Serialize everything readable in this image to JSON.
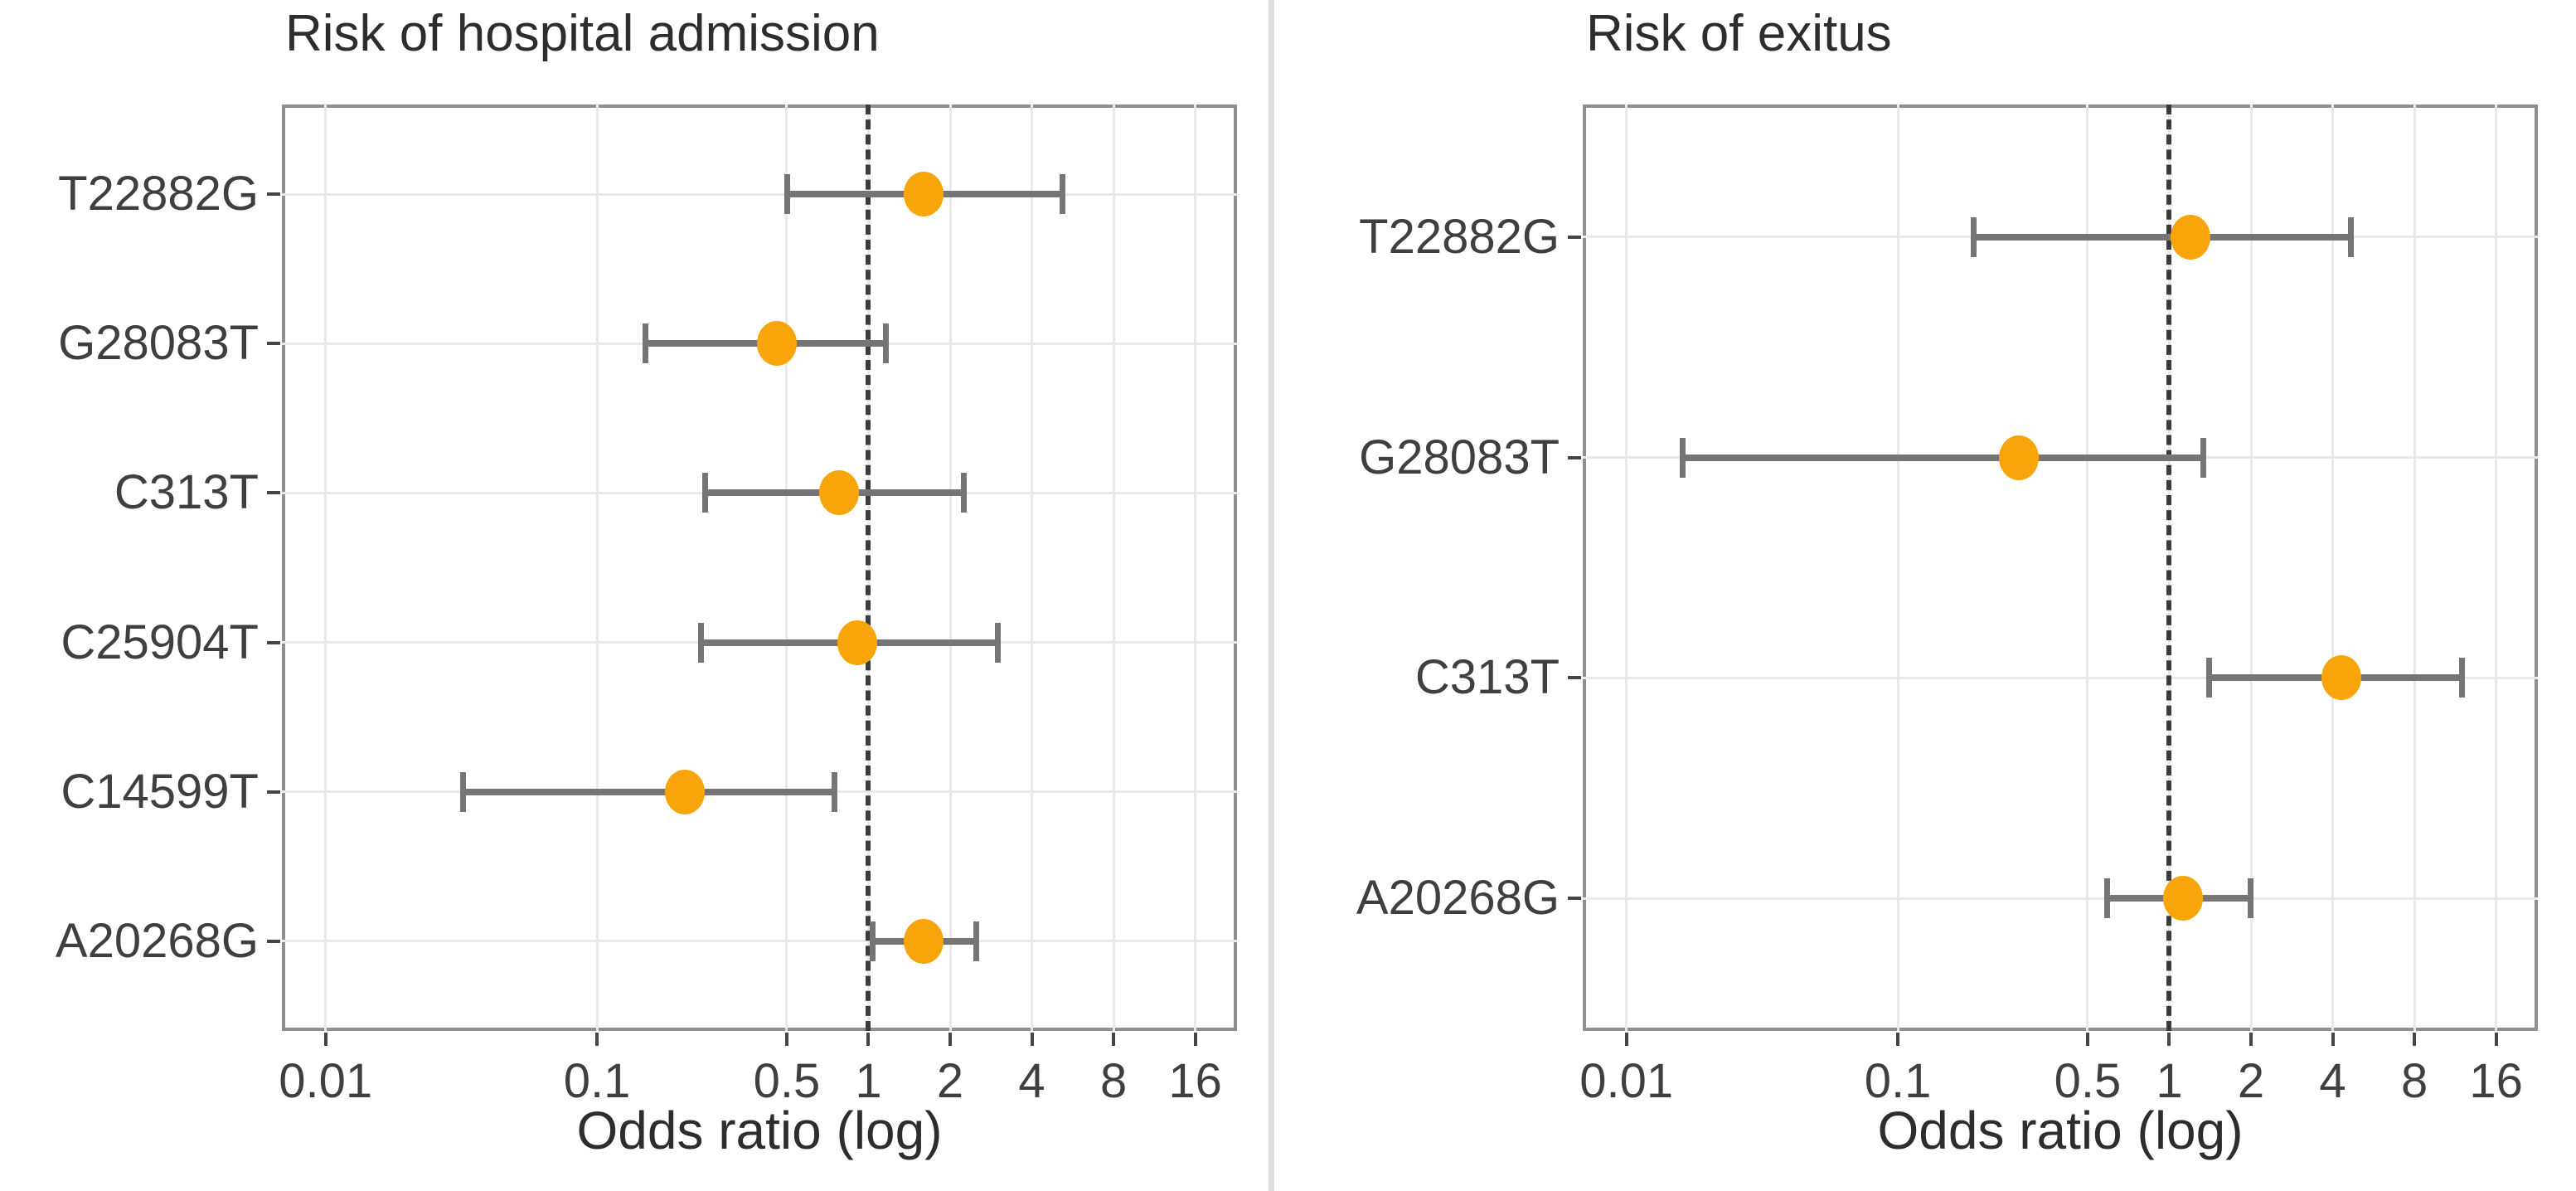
{
  "page": {
    "background": "#ffffff",
    "divider_color": "#dedede"
  },
  "chart_data": [
    {
      "type": "scatter",
      "variant": "forest_plot",
      "title": "Risk of hospital admission",
      "xlabel": "Odds ratio (log)",
      "x_scale": "log",
      "xlim": [
        0.0069,
        22.8
      ],
      "x_ticks": [
        "0.01",
        "0.1",
        "0.5",
        "1",
        "2",
        "4",
        "8",
        "16"
      ],
      "reference_line_x": 1,
      "grid": true,
      "legend_position": "none",
      "categories": [
        "T22882G",
        "G28083T",
        "C313T",
        "C25904T",
        "C14599T",
        "A20268G"
      ],
      "series": [
        {
          "name": "odds_ratio",
          "values": [
            1.6,
            0.46,
            0.78,
            0.91,
            0.21,
            1.6
          ],
          "ci_low": [
            0.5,
            0.15,
            0.25,
            0.24,
            0.032,
            1.03
          ],
          "ci_high": [
            5.2,
            1.16,
            2.26,
            3.0,
            0.75,
            2.5
          ]
        }
      ],
      "colors": {
        "point": "#F8A50C",
        "error_bar": "#757575",
        "reference_line": "#3B3B3B",
        "grid": "#E9E9E9",
        "panel_border": "#8F8F8F",
        "axis_tick": "#454545",
        "text": "#3F3F3F"
      }
    },
    {
      "type": "scatter",
      "variant": "forest_plot",
      "title": "Risk of exitus",
      "xlabel": "Odds ratio (log)",
      "x_scale": "log",
      "xlim": [
        0.0069,
        22.8
      ],
      "x_ticks": [
        "0.01",
        "0.1",
        "0.5",
        "1",
        "2",
        "4",
        "8",
        "16"
      ],
      "reference_line_x": 1,
      "grid": true,
      "legend_position": "none",
      "categories": [
        "T22882G",
        "G28083T",
        "C313T",
        "A20268G"
      ],
      "series": [
        {
          "name": "odds_ratio",
          "values": [
            1.2,
            0.28,
            4.3,
            1.12
          ],
          "ci_low": [
            0.19,
            0.016,
            1.4,
            0.59
          ],
          "ci_high": [
            4.7,
            1.34,
            12.0,
            2.0
          ]
        }
      ],
      "colors": {
        "point": "#F8A50C",
        "error_bar": "#757575",
        "reference_line": "#3B3B3B",
        "grid": "#E9E9E9",
        "panel_border": "#8F8F8F",
        "axis_tick": "#454545",
        "text": "#3F3F3F"
      }
    }
  ]
}
